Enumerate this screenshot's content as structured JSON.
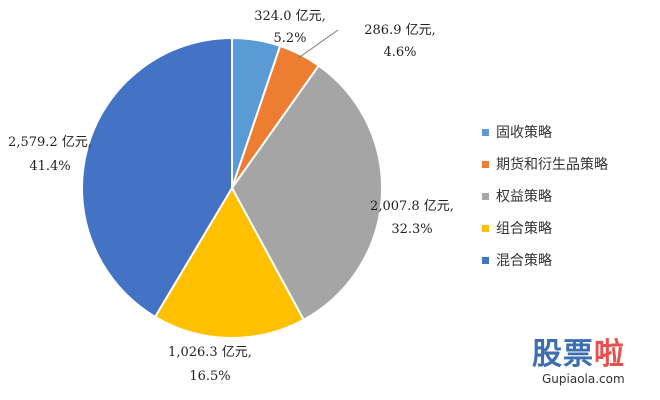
{
  "chart_data": {
    "type": "pie",
    "title": "",
    "slices": [
      {
        "name": "固收策略",
        "value": 324.0,
        "value_label": "324.0 亿元,",
        "percent_label": "5.2%",
        "color": "#5b9bd5"
      },
      {
        "name": "期货和衍生品策略",
        "value": 286.9,
        "value_label": "286.9 亿元,",
        "percent_label": "4.6%",
        "color": "#ed7d31"
      },
      {
        "name": "权益策略",
        "value": 2007.8,
        "value_label": "2,007.8 亿元,",
        "percent_label": "32.3%",
        "color": "#a5a5a5"
      },
      {
        "name": "组合策略",
        "value": 1026.3,
        "value_label": "1,026.3 亿元,",
        "percent_label": "16.5%",
        "color": "#ffc000"
      },
      {
        "name": "混合策略",
        "value": 2579.2,
        "value_label": "2,579.2 亿元,",
        "percent_label": "41.4%",
        "color": "#4472c4"
      }
    ],
    "legend_position": "right",
    "start_angle": "top, clockwise"
  },
  "watermark": {
    "brand_main": "股票",
    "brand_accent": "啦",
    "brand_domain": "Gupiaola.com"
  }
}
